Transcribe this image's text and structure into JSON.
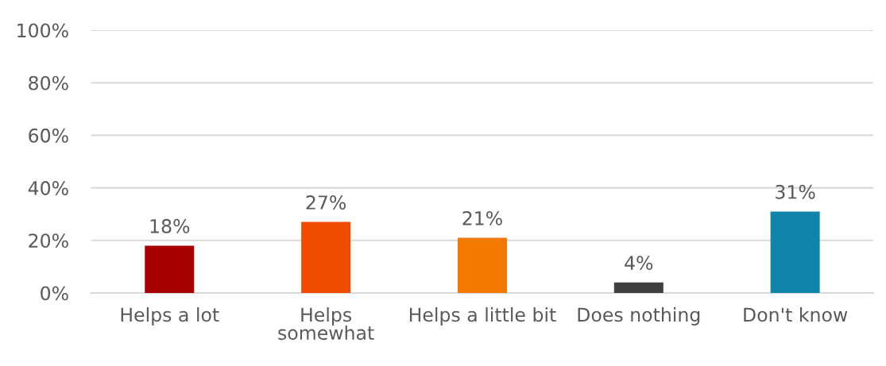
{
  "chart_data": {
    "type": "bar",
    "categories": [
      "Helps a lot",
      "Helps\nsomewhat",
      "Helps a little bit",
      "Does nothing",
      "Don't know"
    ],
    "values": [
      18,
      27,
      21,
      4,
      31
    ],
    "colors": [
      "#a80000",
      "#f04a00",
      "#f27800",
      "#3f3f3f",
      "#1184ab"
    ],
    "value_labels": [
      "18%",
      "27%",
      "21%",
      "4%",
      "31%"
    ],
    "ylim": [
      0,
      100
    ],
    "yticks": [
      {
        "value": 0,
        "label": "0%"
      },
      {
        "value": 20,
        "label": "20%"
      },
      {
        "value": 40,
        "label": "40%"
      },
      {
        "value": 60,
        "label": "60%"
      },
      {
        "value": 80,
        "label": "80%"
      },
      {
        "value": 100,
        "label": "100%"
      }
    ],
    "grid": "y"
  }
}
